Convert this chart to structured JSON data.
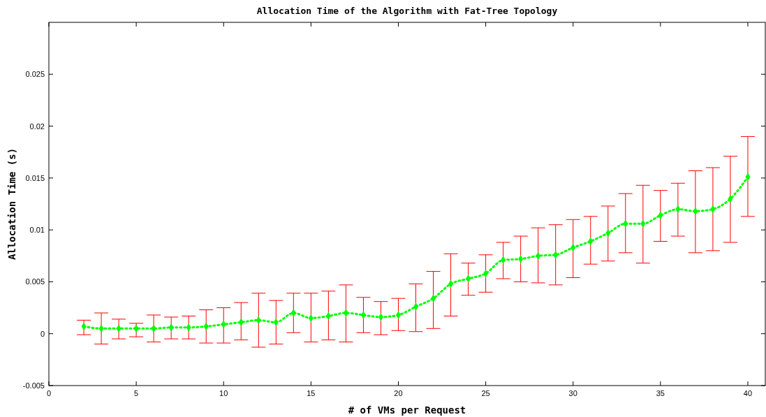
{
  "chart_data": {
    "type": "line",
    "title": "Allocation Time of the Algorithm with Fat-Tree Topology",
    "xlabel": "# of VMs per Request",
    "ylabel": "Allocation Time (s)",
    "x": [
      2,
      3,
      4,
      5,
      6,
      7,
      8,
      9,
      10,
      11,
      12,
      13,
      14,
      15,
      16,
      17,
      18,
      19,
      20,
      21,
      22,
      23,
      24,
      25,
      26,
      27,
      28,
      29,
      30,
      31,
      32,
      33,
      34,
      35,
      36,
      37,
      38,
      39,
      40
    ],
    "series": [
      {
        "color": "#00ff00",
        "values": [
          0.0007,
          0.0005,
          0.0005,
          0.0005,
          0.0005,
          0.0006,
          0.0006,
          0.0007,
          0.0009,
          0.0011,
          0.0013,
          0.0011,
          0.002,
          0.0015,
          0.0017,
          0.002,
          0.0018,
          0.0016,
          0.0018,
          0.0026,
          0.0034,
          0.0048,
          0.0053,
          0.0058,
          0.0071,
          0.0072,
          0.0075,
          0.0076,
          0.0083,
          0.0089,
          0.0097,
          0.0106,
          0.0106,
          0.0114,
          0.012,
          0.0118,
          0.012,
          0.013,
          0.0151
        ],
        "errors": [
          [
            -0.0001,
            0.0013
          ],
          [
            -0.001,
            0.002
          ],
          [
            -0.0005,
            0.0014
          ],
          [
            -0.0003,
            0.001
          ],
          [
            -0.0008,
            0.0018
          ],
          [
            -0.0005,
            0.0016
          ],
          [
            -0.0005,
            0.0017
          ],
          [
            -0.0009,
            0.0023
          ],
          [
            -0.0009,
            0.0025
          ],
          [
            -0.0006,
            0.003
          ],
          [
            -0.0013,
            0.0039
          ],
          [
            -0.001,
            0.0032
          ],
          [
            0.0001,
            0.0039
          ],
          [
            -0.0008,
            0.0039
          ],
          [
            -0.0006,
            0.0041
          ],
          [
            -0.0008,
            0.0047
          ],
          [
            0.0001,
            0.0035
          ],
          [
            -0.0001,
            0.0031
          ],
          [
            0.0003,
            0.0034
          ],
          [
            0.0002,
            0.0048
          ],
          [
            0.0005,
            0.006
          ],
          [
            0.0017,
            0.0077
          ],
          [
            0.0037,
            0.0068
          ],
          [
            0.004,
            0.0076
          ],
          [
            0.0053,
            0.0088
          ],
          [
            0.005,
            0.0094
          ],
          [
            0.0049,
            0.0102
          ],
          [
            0.0047,
            0.0105
          ],
          [
            0.0054,
            0.011
          ],
          [
            0.0067,
            0.0113
          ],
          [
            0.007,
            0.0123
          ],
          [
            0.0078,
            0.0135
          ],
          [
            0.0068,
            0.0143
          ],
          [
            0.0089,
            0.0138
          ],
          [
            0.0094,
            0.0145
          ],
          [
            0.0078,
            0.0157
          ],
          [
            0.008,
            0.016
          ],
          [
            0.0088,
            0.0171
          ],
          [
            0.0113,
            0.019
          ]
        ]
      }
    ],
    "xlim": [
      0,
      41
    ],
    "ylim": [
      -0.005,
      0.03
    ],
    "xticks": [
      0,
      5,
      10,
      15,
      20,
      25,
      30,
      35,
      40
    ],
    "yticks": [
      -0.005,
      0,
      0.005,
      0.01,
      0.015,
      0.02,
      0.025
    ],
    "marker": "diamond",
    "line_style": "dotted",
    "grid": false
  }
}
